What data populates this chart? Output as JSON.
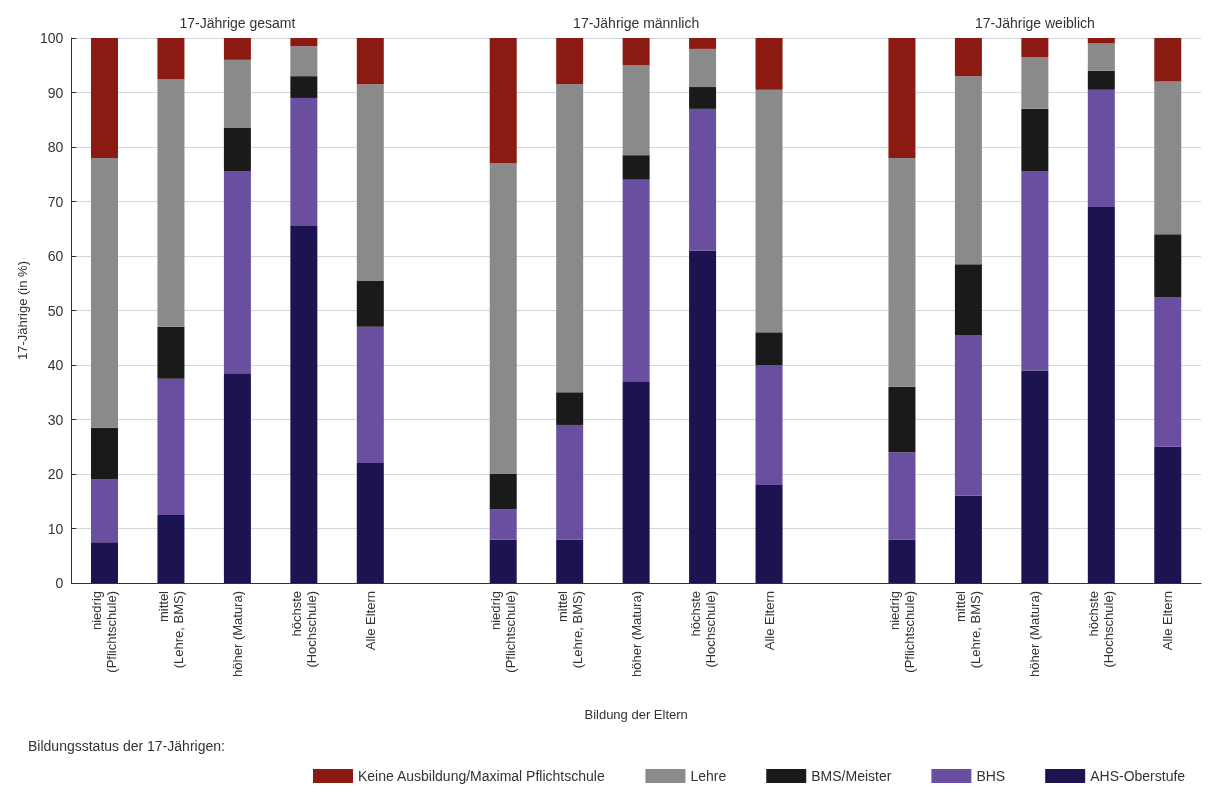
{
  "chart_data": {
    "type": "bar",
    "stacked": true,
    "ylabel": "17-Jährige (in %)",
    "xlabel": "Bildung der Eltern",
    "legend_title": "Bildungsstatus der 17-Jährigen:",
    "annotations": [
      "17-Jährige gesamt",
      "17-Jährige männlich",
      "17-Jährige weiblich"
    ],
    "categories": [
      "niedrig\n(Pflichtschule)",
      "mittel\n(Lehre, BMS)",
      "höher (Matura)",
      "höchste\n(Hochschule)",
      "Alle Eltern",
      null,
      "niedrig\n(Pflichtschule)",
      "mittel\n(Lehre, BMS)",
      "höher (Matura)",
      "höchste\n(Hochschule)",
      "Alle Eltern",
      null,
      "niedrig\n(Pflichtschule)",
      "mittel\n(Lehre, BMS)",
      "höher (Matura)",
      "höchste\n(Hochschule)",
      "Alle Eltern"
    ],
    "series": [
      {
        "name": "AHS-Oberstufe",
        "color": "#1c1450",
        "values": [
          7.5,
          12.5,
          38.5,
          65.5,
          22,
          null,
          8,
          8,
          37,
          61,
          18,
          null,
          8,
          16,
          39,
          69,
          25
        ]
      },
      {
        "name": "BHS",
        "color": "#6a4fa0",
        "values": [
          11.5,
          25,
          37,
          23.5,
          25,
          null,
          5.5,
          21,
          37,
          26,
          22,
          null,
          16,
          29.5,
          36.5,
          21.5,
          27.5
        ]
      },
      {
        "name": "BMS/Meister",
        "color": "#1a1a1a",
        "values": [
          9.5,
          9.5,
          8,
          4,
          8.5,
          null,
          6.5,
          6,
          4.5,
          4,
          6,
          null,
          12,
          13,
          11.5,
          3.5,
          11.5
        ]
      },
      {
        "name": "Lehre",
        "color": "#8a8a8a",
        "values": [
          49.5,
          45.5,
          12.5,
          5.5,
          36,
          null,
          57,
          56.5,
          16.5,
          7,
          44.5,
          null,
          42,
          34.5,
          9.5,
          5,
          28
        ]
      },
      {
        "name": "Keine Ausbildung/Maximal Pflichtschule",
        "color": "#8b1a12",
        "values": [
          22,
          7.5,
          4,
          1.5,
          8.5,
          null,
          23,
          8.5,
          5,
          2,
          9.5,
          null,
          22,
          7,
          3.5,
          1,
          8
        ]
      }
    ],
    "ylim": [
      0,
      100
    ],
    "yticks": [
      0,
      10,
      20,
      30,
      40,
      50,
      60,
      70,
      80,
      90,
      100
    ],
    "grid": "y",
    "legend": "bottom"
  }
}
